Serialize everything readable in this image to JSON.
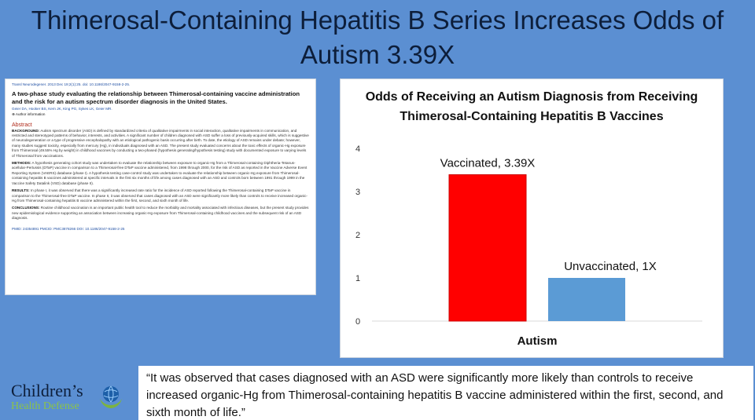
{
  "headline": "Thimerosal-Containing Hepatitis B Series Increases Odds of Autism 3.39X",
  "abstract_doc": {
    "journal_line": "Transl Neurodegener. 2013 Dec 19;2(1):25. doi: 10.1186/2047-9158-2-25.",
    "title": "A two-phase study evaluating the relationship between Thimerosal-containing vaccine administration and the risk for an autism spectrum disorder diagnosis in the United States.",
    "authors": "Geier DA, Hooker BS, Kern JK, King PG, Sykes LK, Geier MR.",
    "author_info": "Author information",
    "abstract_heading": "Abstract",
    "background_label": "BACKGROUND:",
    "background": "Autism spectrum disorder (ASD) is defined by standardized criteria of qualitative impairments in social interaction, qualitative impairments in communication, and restricted and stereotyped patterns of behavior, interests, and activities. A significant number of children diagnosed with ASD suffer a loss of previously-acquired skills, which is suggestive of neurodegeneration or a type of progressive encephalopathy with an etiological pathogenic basis occurring after birth. To date, the etiology of ASD remains under debate; however, many studies suggest toxicity, especially from mercury (Hg), in individuals diagnosed with an ASD. The present study evaluated concerns about the toxic effects of organic-Hg exposure from Thimerosal (49.55% Hg by weight) in childhood vaccines by conducting a two-phased (hypothesis generating/hypothesis testing) study with documented exposure to varying levels of Thimerosal from vaccinations.",
    "methods_label": "METHODS:",
    "methods": "A hypothesis generating cohort study was undertaken to evaluate the relationship between exposure to organic-Hg from a Thimerosal-containing Diphtheria-Tetanus-acellular-Pertussis (DTaP) vaccine in comparison to a Thimerosal-free DTaP vaccine administered, from 1998 through 2000, for the risk of ASD as reported in the Vaccine Adverse Event Reporting System (VAERS) database (phase I). A hypothesis testing case-control study was undertaken to evaluate the relationship between organic-Hg exposure from Thimerosal-containing hepatitis B vaccines administered at specific intervals in the first six months of life among cases diagnosed with an ASD and controls born between 1991 through 1999 in the Vaccine Safety Datalink (VSD) database (phase II).",
    "results_label": "RESULTS:",
    "results": "In phase I, it was observed that there was a significantly increased rate ratio for the incidence of ASD reported following the Thimerosal-containing DTaP vaccine in comparison to the Thimerosal-free DTaP vaccine. In phase II, it was observed that cases diagnosed with an ASD were significantly more likely than controls to receive increased organic-Hg from Thimerosal-containing hepatitis B vaccine administered within the first, second, and sixth month of life.",
    "conclusions_label": "CONCLUSIONS:",
    "conclusions": "Routine childhood vaccination is an important public health tool to reduce the morbidity and mortality associated with infectious diseases, but the present study provides new epidemiological evidence supporting an association between increasing organic-Hg exposure from Thimerosal-containing childhood vaccines and the subsequent risk of an ASD diagnosis.",
    "footer": "PMID: 24354891    PMCID: PMC3878266    DOI: 10.1186/2047-9158-2-25"
  },
  "chart_data": {
    "type": "bar",
    "title": "Odds of Receiving an Autism Diagnosis from Receiving Thimerosal-Containing Hepatitis B Vaccines",
    "categories": [
      "Autism"
    ],
    "series": [
      {
        "name": "Vaccinated",
        "values": [
          3.39
        ],
        "label": "Vaccinated, 3.39X",
        "color": "#ff0000"
      },
      {
        "name": "Unvaccinated",
        "values": [
          1
        ],
        "label": "Unvaccinated, 1X",
        "color": "#5b9bd5"
      }
    ],
    "ylim": [
      0,
      4
    ],
    "yticks": [
      "0",
      "1",
      "2",
      "3",
      "4"
    ],
    "grid": false,
    "legend": "none"
  },
  "quote": "“It was observed that cases diagnosed with an ASD were significantly more likely than controls to receive increased organic-Hg from Thimerosal-containing hepatitis B vaccine administered within the first, second, and sixth month of life.”",
  "logo": {
    "line1": "Children’s",
    "line2": "Health Defense",
    "icon": "globe-hands-icon"
  }
}
